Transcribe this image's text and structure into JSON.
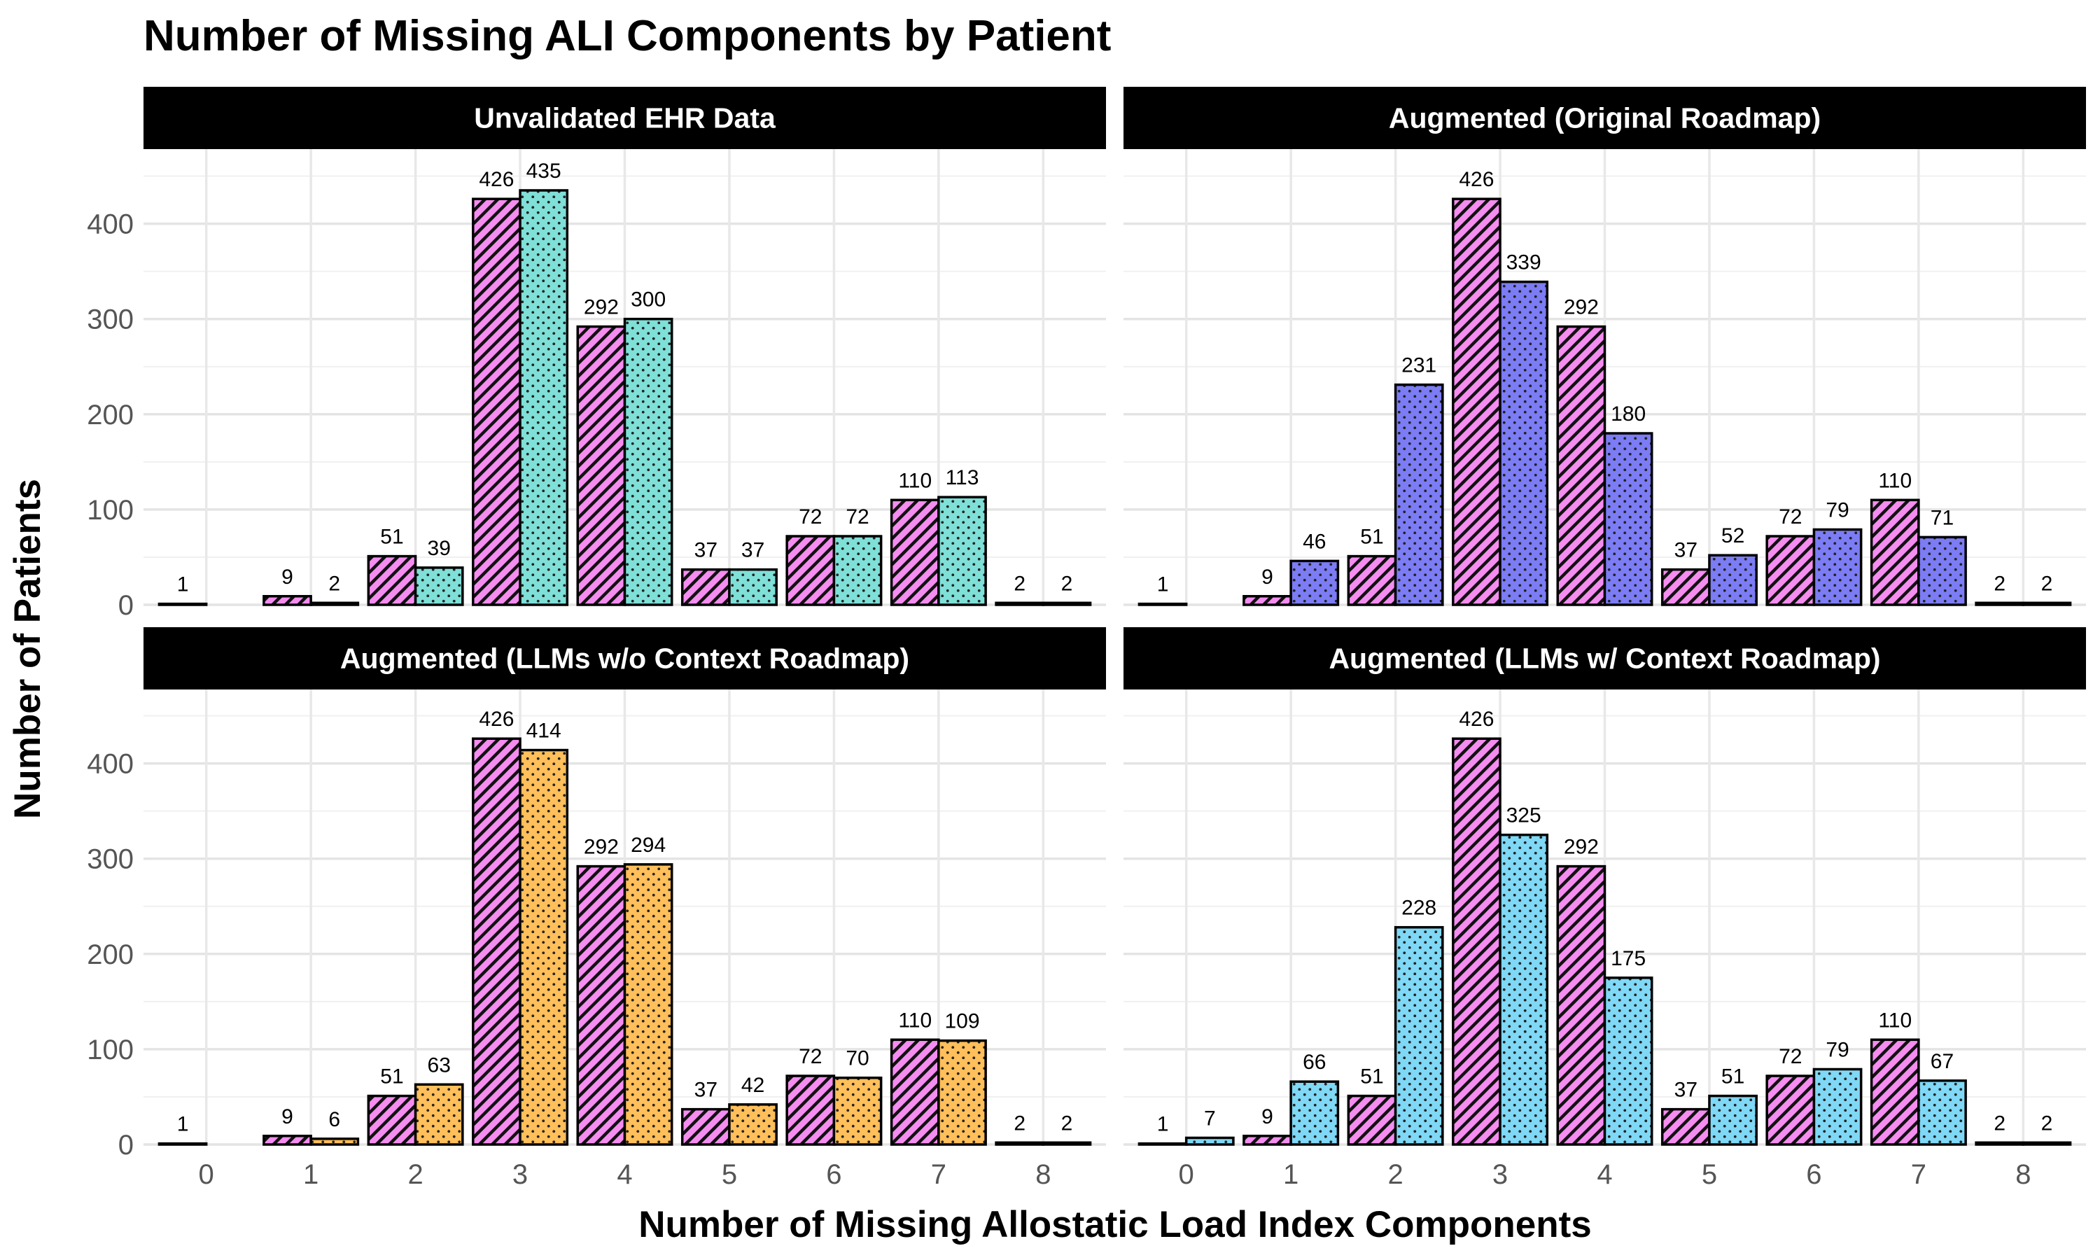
{
  "chart_data": {
    "type": "bar",
    "title": "Number of Missing ALI Components by Patient",
    "xlabel": "Number of Missing Allostatic Load Index Components",
    "ylabel": "Number of Patients",
    "categories": [
      "0",
      "1",
      "2",
      "3",
      "4",
      "5",
      "6",
      "7",
      "8"
    ],
    "ylim": [
      0,
      470
    ],
    "yticks": [
      0,
      100,
      200,
      300,
      400
    ],
    "grid": true,
    "legend": "none",
    "panels": [
      {
        "title": "Unvalidated EHR Data",
        "series": [
          {
            "values": [
              1,
              9,
              51,
              426,
              292,
              37,
              72,
              110,
              2
            ],
            "color": "#f58cf0",
            "pattern": "diagonal-stripes"
          },
          {
            "values": [
              null,
              2,
              39,
              435,
              300,
              37,
              72,
              113,
              2
            ],
            "color": "#7fe0d8",
            "pattern": "dots"
          }
        ]
      },
      {
        "title": "Augmented (Original Roadmap)",
        "series": [
          {
            "values": [
              1,
              9,
              51,
              426,
              292,
              37,
              72,
              110,
              2
            ],
            "color": "#f58cf0",
            "pattern": "diagonal-stripes"
          },
          {
            "values": [
              null,
              46,
              231,
              339,
              180,
              52,
              79,
              71,
              2
            ],
            "color": "#7c7cf5",
            "pattern": "dots"
          }
        ]
      },
      {
        "title": "Augmented (LLMs w/o Context Roadmap)",
        "series": [
          {
            "values": [
              1,
              9,
              51,
              426,
              292,
              37,
              72,
              110,
              2
            ],
            "color": "#f58cf0",
            "pattern": "diagonal-stripes"
          },
          {
            "values": [
              null,
              6,
              63,
              414,
              294,
              42,
              70,
              109,
              2
            ],
            "color": "#ffbf5a",
            "pattern": "dots"
          }
        ]
      },
      {
        "title": "Augmented (LLMs w/ Context Roadmap)",
        "series": [
          {
            "values": [
              1,
              9,
              51,
              426,
              292,
              37,
              72,
              110,
              2
            ],
            "color": "#f58cf0",
            "pattern": "diagonal-stripes"
          },
          {
            "values": [
              7,
              66,
              228,
              325,
              175,
              51,
              79,
              67,
              2
            ],
            "color": "#7fd8f5",
            "pattern": "dots"
          }
        ]
      }
    ]
  }
}
